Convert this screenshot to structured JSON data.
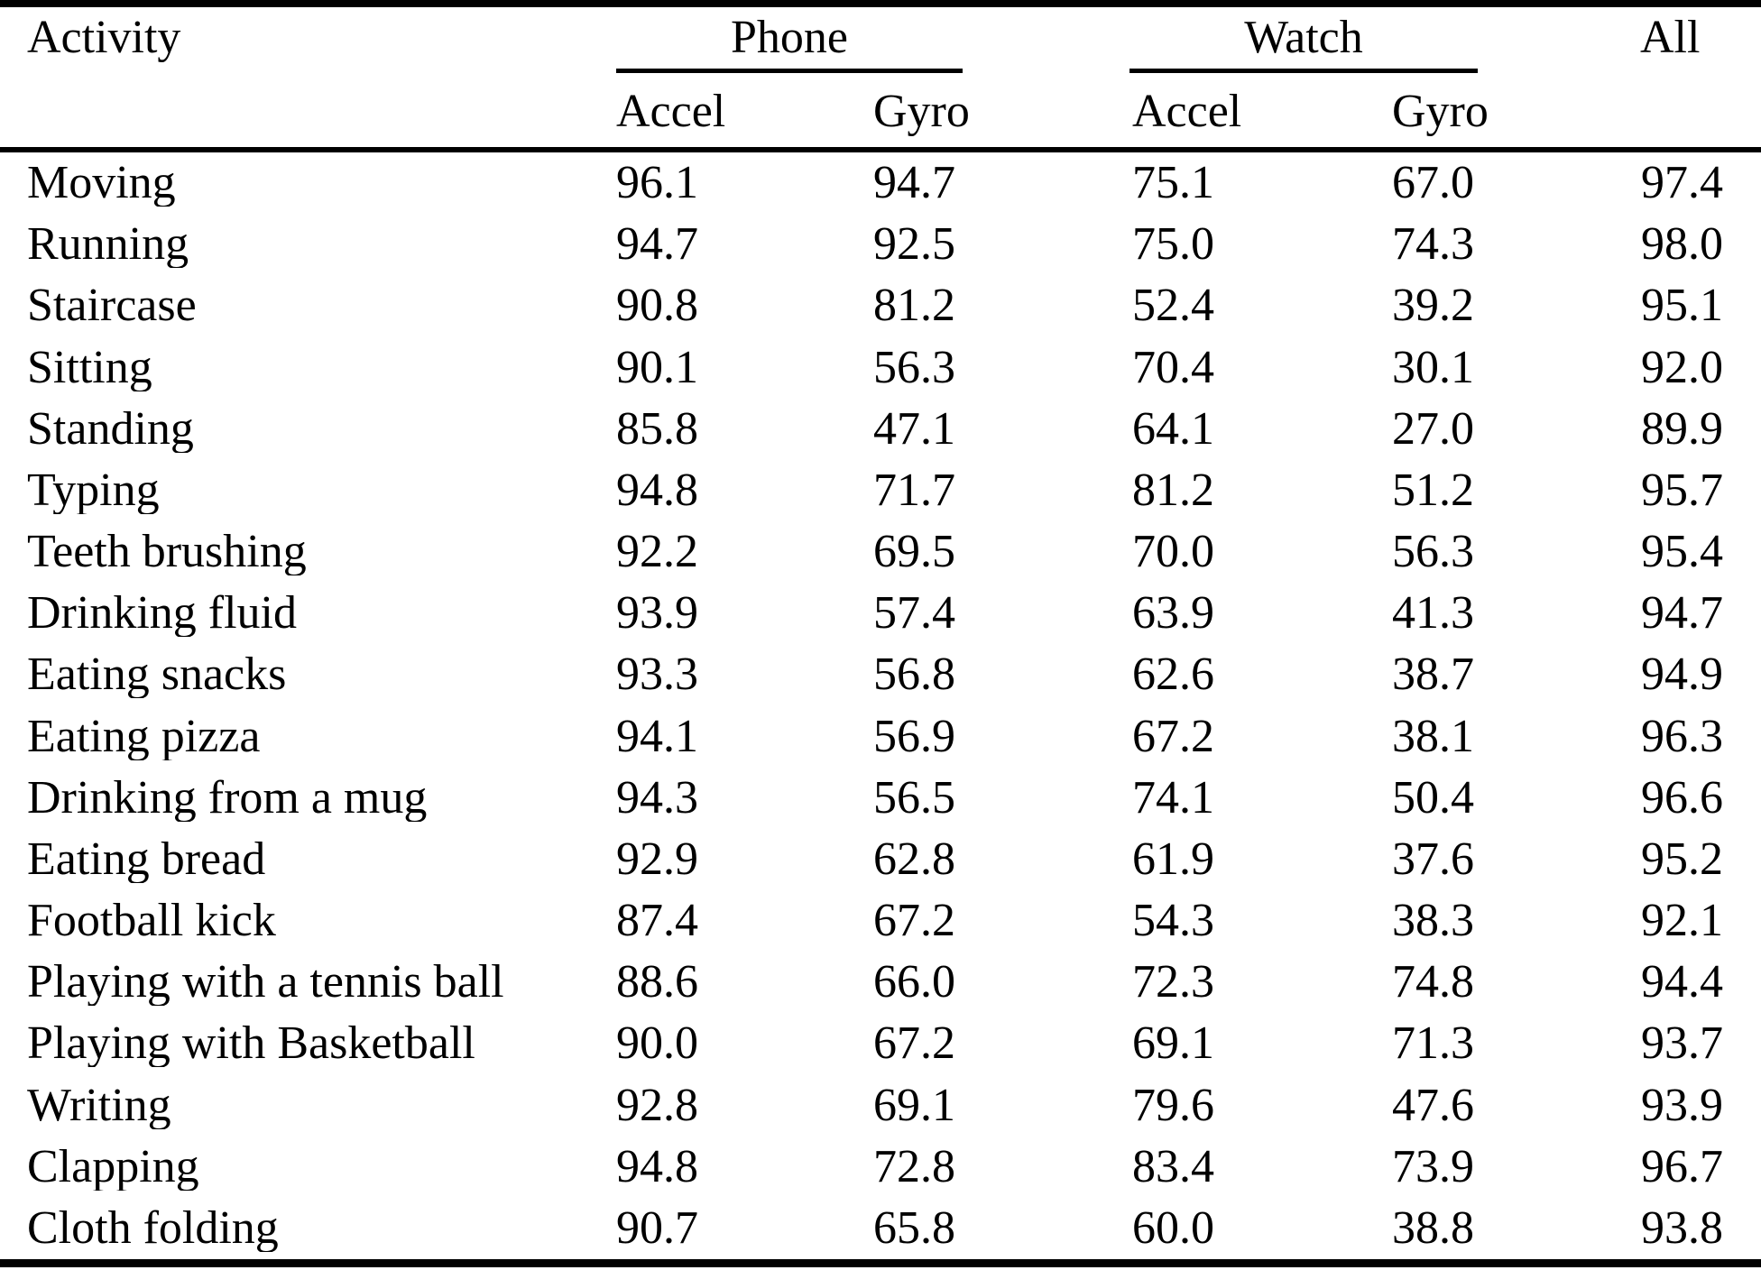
{
  "table": {
    "header": {
      "activity": "Activity",
      "phone": "Phone",
      "watch": "Watch",
      "all": "All",
      "phone_accel": "Accel",
      "phone_gyro": "Gyro",
      "watch_accel": "Accel",
      "watch_gyro": "Gyro"
    }
  },
  "chart_data": {
    "type": "table",
    "columns": [
      "Activity",
      "Phone Accel",
      "Phone Gyro",
      "Watch Accel",
      "Watch Gyro",
      "All"
    ],
    "rows": [
      [
        "Moving",
        96.1,
        94.7,
        75.1,
        67.0,
        97.4
      ],
      [
        "Running",
        94.7,
        92.5,
        75.0,
        74.3,
        98.0
      ],
      [
        "Staircase",
        90.8,
        81.2,
        52.4,
        39.2,
        95.1
      ],
      [
        "Sitting",
        90.1,
        56.3,
        70.4,
        30.1,
        92.0
      ],
      [
        "Standing",
        85.8,
        47.1,
        64.1,
        27.0,
        89.9
      ],
      [
        "Typing",
        94.8,
        71.7,
        81.2,
        51.2,
        95.7
      ],
      [
        "Teeth brushing",
        92.2,
        69.5,
        70.0,
        56.3,
        95.4
      ],
      [
        "Drinking fluid",
        93.9,
        57.4,
        63.9,
        41.3,
        94.7
      ],
      [
        "Eating snacks",
        93.3,
        56.8,
        62.6,
        38.7,
        94.9
      ],
      [
        "Eating pizza",
        94.1,
        56.9,
        67.2,
        38.1,
        96.3
      ],
      [
        "Drinking from a mug",
        94.3,
        56.5,
        74.1,
        50.4,
        96.6
      ],
      [
        "Eating bread",
        92.9,
        62.8,
        61.9,
        37.6,
        95.2
      ],
      [
        "Football kick",
        87.4,
        67.2,
        54.3,
        38.3,
        92.1
      ],
      [
        "Playing with a tennis ball",
        88.6,
        66.0,
        72.3,
        74.8,
        94.4
      ],
      [
        "Playing with Basketball",
        90.0,
        67.2,
        69.1,
        71.3,
        93.7
      ],
      [
        "Writing",
        92.8,
        69.1,
        79.6,
        47.6,
        93.9
      ],
      [
        "Clapping",
        94.8,
        72.8,
        83.4,
        73.9,
        96.7
      ],
      [
        "Cloth folding",
        90.7,
        65.8,
        60.0,
        38.8,
        93.8
      ]
    ]
  }
}
